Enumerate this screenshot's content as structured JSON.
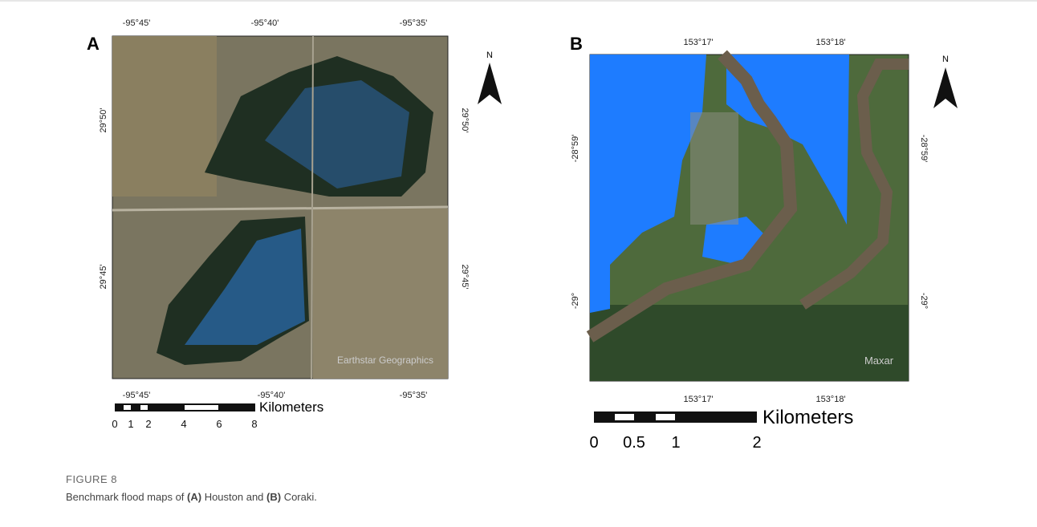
{
  "figure": {
    "panels": [
      {
        "label": "A",
        "top_ticks": [
          "-95°45'",
          "-95°40'",
          "-95°35'"
        ],
        "bottom_ticks": [
          "-95°45'",
          "-95°40'",
          "-95°35'"
        ],
        "left_ticks": [
          "29°50'",
          "29°45'"
        ],
        "right_ticks": [
          "29°50'",
          "29°45'"
        ],
        "north": "N",
        "attribution": "Earthstar Geographics",
        "scale_labels": [
          "0",
          "1",
          "2",
          "4",
          "6",
          "8"
        ],
        "scale_unit": "Kilometers"
      },
      {
        "label": "B",
        "top_ticks": [
          "153°17'",
          "153°18'"
        ],
        "bottom_ticks": [
          "153°17'",
          "153°18'"
        ],
        "left_ticks": [
          "-28°59'",
          "-29°"
        ],
        "right_ticks": [
          "-28°59'",
          "-29°"
        ],
        "north": "N",
        "attribution": "Maxar",
        "scale_labels": [
          "0",
          "0.5",
          "1",
          "2"
        ],
        "scale_unit": "Kilometers"
      }
    ],
    "caption": {
      "number": "FIGURE 8",
      "parts": [
        "Benchmark flood maps of ",
        "(A)",
        " Houston and ",
        "(B)",
        " Coraki."
      ]
    }
  }
}
